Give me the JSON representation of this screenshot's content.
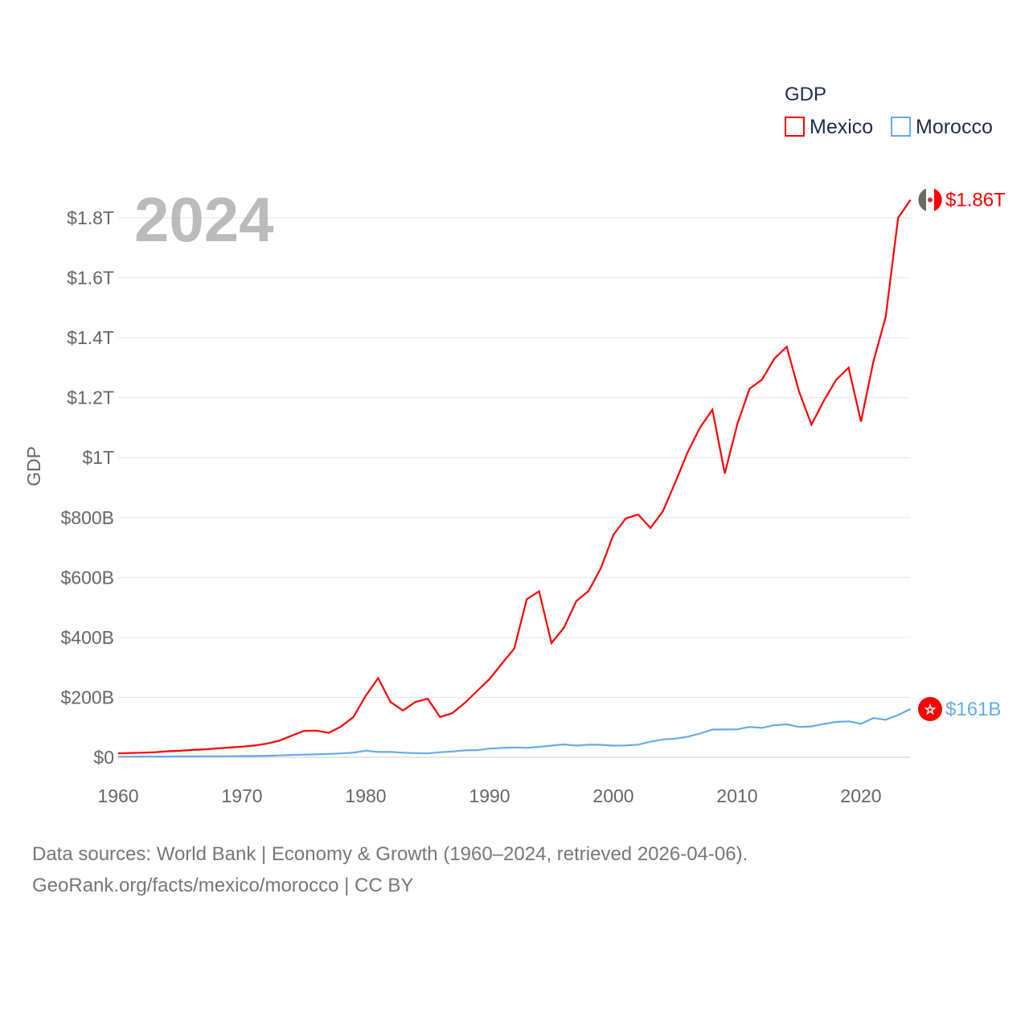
{
  "chart_data": {
    "type": "line",
    "title": "GDP",
    "ylabel": "GDP",
    "xlabel": "",
    "year_watermark": "2024",
    "legend_placement": "top-right",
    "xlim": [
      1960,
      2024
    ],
    "ylim": [
      0,
      1900
    ],
    "y_unit": "billion USD",
    "grid": true,
    "x_ticks": [
      {
        "value": 1960,
        "label": "1960"
      },
      {
        "value": 1970,
        "label": "1970"
      },
      {
        "value": 1980,
        "label": "1980"
      },
      {
        "value": 1990,
        "label": "1990"
      },
      {
        "value": 2000,
        "label": "2000"
      },
      {
        "value": 2010,
        "label": "2010"
      },
      {
        "value": 2020,
        "label": "2020"
      }
    ],
    "y_ticks": [
      {
        "value": 0,
        "label": "$0"
      },
      {
        "value": 200,
        "label": "$200B"
      },
      {
        "value": 400,
        "label": "$400B"
      },
      {
        "value": 600,
        "label": "$600B"
      },
      {
        "value": 800,
        "label": "$800B"
      },
      {
        "value": 1000,
        "label": "$1T"
      },
      {
        "value": 1200,
        "label": "$1.2T"
      },
      {
        "value": 1400,
        "label": "$1.4T"
      },
      {
        "value": 1600,
        "label": "$1.6T"
      },
      {
        "value": 1800,
        "label": "$1.8T"
      }
    ],
    "x": [
      1960,
      1961,
      1962,
      1963,
      1964,
      1965,
      1966,
      1967,
      1968,
      1969,
      1970,
      1971,
      1972,
      1973,
      1974,
      1975,
      1976,
      1977,
      1978,
      1979,
      1980,
      1981,
      1982,
      1983,
      1984,
      1985,
      1986,
      1987,
      1988,
      1989,
      1990,
      1991,
      1992,
      1993,
      1994,
      1995,
      1996,
      1997,
      1998,
      1999,
      2000,
      2001,
      2002,
      2003,
      2004,
      2005,
      2006,
      2007,
      2008,
      2009,
      2010,
      2011,
      2012,
      2013,
      2014,
      2015,
      2016,
      2017,
      2018,
      2019,
      2020,
      2021,
      2022,
      2023,
      2024
    ],
    "series": [
      {
        "name": "Mexico",
        "color": "#ff0000",
        "end_label": "$1.86T",
        "flag": "mexico-flag-icon",
        "values": [
          13,
          14.2,
          15.2,
          17,
          20.1,
          21.8,
          24.3,
          26.6,
          29.4,
          32.5,
          35.5,
          39.2,
          45.2,
          55.3,
          72,
          88,
          89,
          81.6,
          102.5,
          134.5,
          205.1,
          263.9,
          184.6,
          156.2,
          184.2,
          195.2,
          134.5,
          147.5,
          181.6,
          221.4,
          261.3,
          313.1,
          363.2,
          527.3,
          554,
          381,
          432,
          521,
          555,
          632,
          742,
          797,
          810,
          765,
          821,
          917,
          1018,
          1100,
          1160,
          947,
          1110,
          1230,
          1260,
          1330,
          1370,
          1220,
          1110,
          1190,
          1260,
          1300,
          1120,
          1320,
          1470,
          1800,
          1860
        ]
      },
      {
        "name": "Morocco",
        "color": "#66aaee",
        "end_label": "$161B",
        "flag": "morocco-flag-icon",
        "values": [
          2,
          2.1,
          2.3,
          2.5,
          2.7,
          2.9,
          3,
          3.1,
          3.3,
          3.6,
          4,
          4.4,
          5,
          6.2,
          7.7,
          8.9,
          9.6,
          11,
          13,
          15.5,
          21.7,
          17.8,
          17.6,
          15.4,
          13.9,
          13,
          17,
          19,
          23,
          24,
          29,
          31,
          33,
          31.5,
          35,
          39,
          43,
          39,
          42,
          41.6,
          38.9,
          39.5,
          42.2,
          52,
          59.6,
          62.3,
          68.6,
          79,
          92.5,
          92.9,
          93.2,
          101.4,
          98.3,
          107,
          110,
          101,
          103,
          111,
          118,
          120,
          112,
          131,
          125,
          141,
          161
        ]
      }
    ]
  },
  "legend": {
    "title": "GDP",
    "items": [
      "Mexico",
      "Morocco"
    ]
  },
  "footer": {
    "line1": "Data sources: World Bank | Economy & Growth (1960–2024, retrieved 2026-04-06).",
    "line2": "GeoRank.org/facts/mexico/morocco | CC BY"
  }
}
